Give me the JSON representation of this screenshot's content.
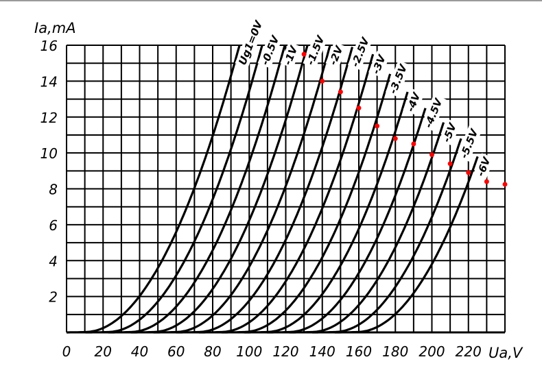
{
  "chart_data": {
    "type": "line",
    "title": "",
    "xlabel": "Ua,V",
    "ylabel": "Ia,mA",
    "xlim": [
      0,
      240
    ],
    "ylim": [
      0,
      16
    ],
    "grid": true,
    "x_ticks": [
      "0",
      "20",
      "40",
      "60",
      "80",
      "100",
      "120",
      "140",
      "160",
      "180",
      "200",
      "220"
    ],
    "y_ticks": [
      "2",
      "4",
      "6",
      "8",
      "10",
      "12",
      "14",
      "16"
    ],
    "x_tick_values": [
      0,
      20,
      40,
      60,
      80,
      100,
      120,
      140,
      160,
      180,
      200,
      220
    ],
    "y_tick_values": [
      2,
      4,
      6,
      8,
      10,
      12,
      14,
      16
    ],
    "curve_model": {
      "form": "Ia = k*(Ua - offset)^2",
      "k": 0.00223,
      "base_offset_V": 10,
      "offset_step_V": 12.4
    },
    "series": [
      {
        "name": "Ug1=0V",
        "grid_voltage": 0,
        "max_current": 16
      },
      {
        "name": "-0.5V",
        "grid_voltage": -0.5,
        "max_current": 16
      },
      {
        "name": "-1V",
        "grid_voltage": -1,
        "max_current": 16
      },
      {
        "name": "-1.5V",
        "grid_voltage": -1.5,
        "max_current": 16
      },
      {
        "name": "-2V",
        "grid_voltage": -2,
        "max_current": 16
      },
      {
        "name": "-2.5V",
        "grid_voltage": -2.5,
        "max_current": 15.9
      },
      {
        "name": "-3V",
        "grid_voltage": -3,
        "max_current": 15.5
      },
      {
        "name": "-3.5V",
        "grid_voltage": -3.5,
        "max_current": 14.4
      },
      {
        "name": "-4V",
        "grid_voltage": -4,
        "max_current": 13.4
      },
      {
        "name": "-4.5V",
        "grid_voltage": -4.5,
        "max_current": 12.5
      },
      {
        "name": "-5V",
        "grid_voltage": -5,
        "max_current": 11.7
      },
      {
        "name": "-5.5V",
        "grid_voltage": -5.5,
        "max_current": 10.8
      },
      {
        "name": "-6V",
        "grid_voltage": -6,
        "max_current": 9.8
      }
    ],
    "markers": {
      "color": "#ff0000",
      "x": [
        130,
        140,
        150,
        160,
        170,
        180,
        190,
        200,
        210,
        220,
        230,
        240
      ],
      "y": [
        15.5,
        14.0,
        13.4,
        12.5,
        11.5,
        10.8,
        10.5,
        9.9,
        9.4,
        8.9,
        8.4,
        8.25
      ]
    }
  }
}
